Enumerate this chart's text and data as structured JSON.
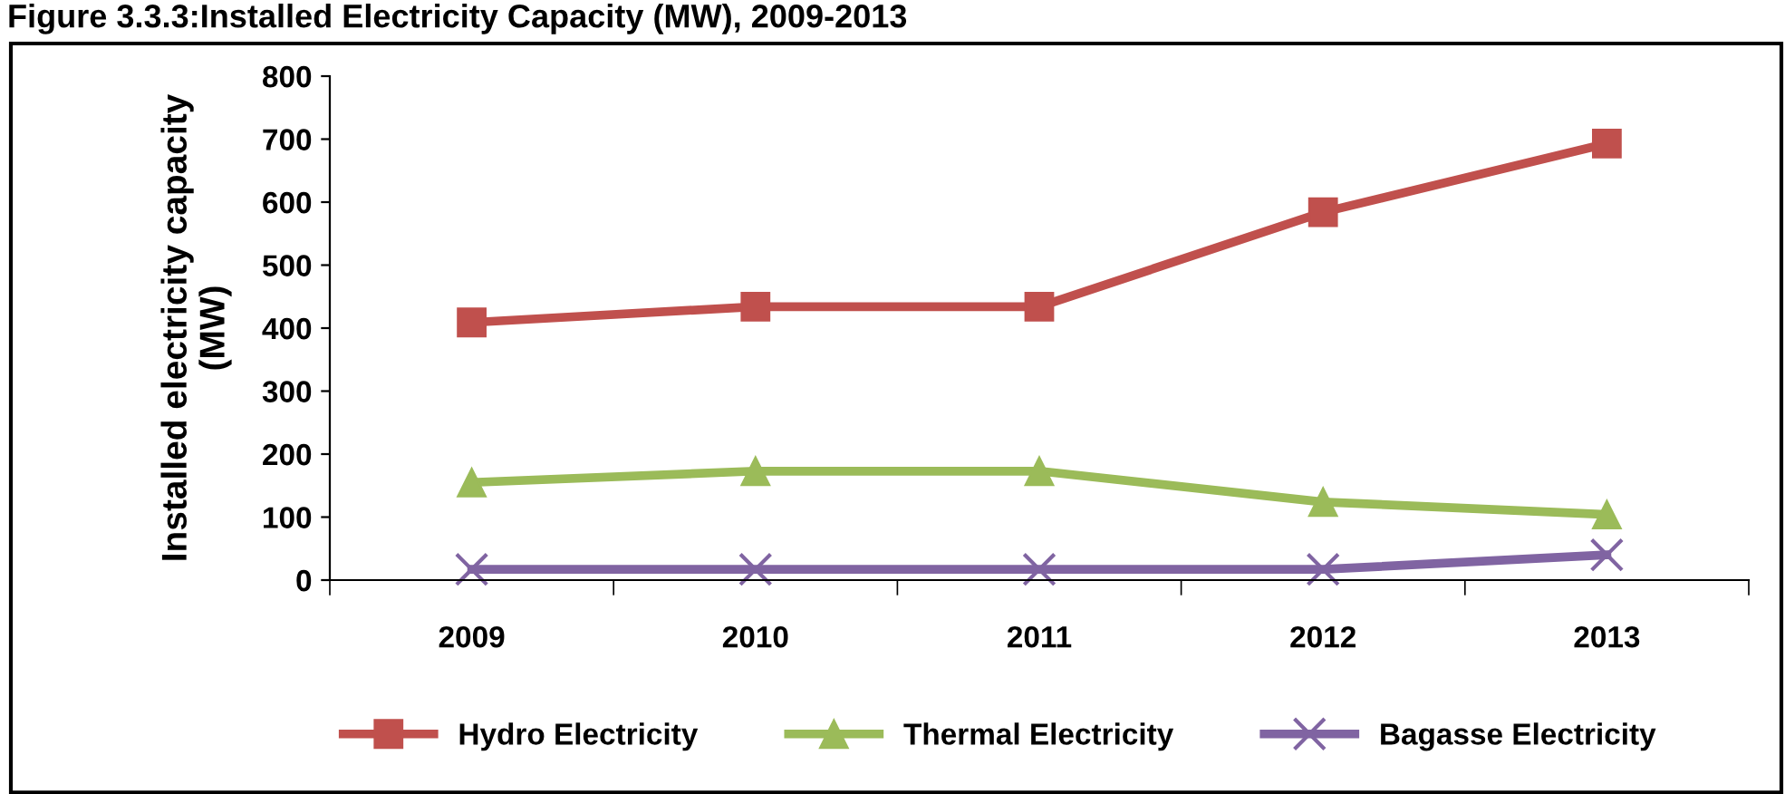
{
  "chart_data": {
    "type": "line",
    "title": "Figure 3.3.3:Installed Electricity Capacity (MW), 2009-2013",
    "ylabel": "Installed electricity capacity\n(MW)",
    "categories": [
      "2009",
      "2010",
      "2011",
      "2012",
      "2013"
    ],
    "series": [
      {
        "name": "Hydro Electricity",
        "color": "#c0504d",
        "marker": "square",
        "values": [
          409,
          434,
          434,
          584,
          693
        ]
      },
      {
        "name": "Thermal Electricity",
        "color": "#9bbb59",
        "marker": "triangle",
        "values": [
          155,
          173,
          173,
          124,
          104
        ]
      },
      {
        "name": "Bagasse Electricity",
        "color": "#8064a2",
        "marker": "cross",
        "values": [
          17,
          17,
          17,
          17,
          40
        ]
      }
    ],
    "ylim": [
      0,
      800
    ],
    "yticks": [
      0,
      100,
      200,
      300,
      400,
      500,
      600,
      700,
      800
    ],
    "grid": false,
    "legend": "bottom",
    "line_style": "solid"
  }
}
